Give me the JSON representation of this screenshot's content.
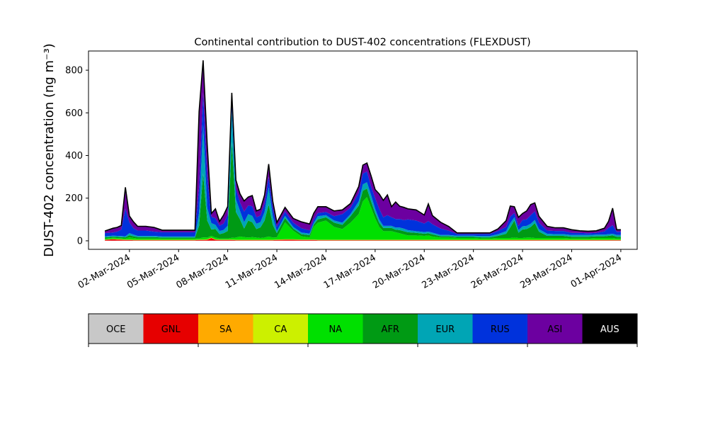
{
  "chart_data": {
    "type": "area",
    "stacked": true,
    "title": "Continental contribution to DUST-402 concentrations (FLEXDUST)",
    "ylabel": "DUST-402 concentration (ng m⁻³)",
    "xlabel": "",
    "ylim": [
      -40,
      890
    ],
    "xlim": [
      "2024-02-28T12:00",
      "2024-04-02T00:00"
    ],
    "yticks": [
      0,
      200,
      400,
      600,
      800
    ],
    "xticks": [
      "2024-03-02",
      "2024-03-05",
      "2024-03-08",
      "2024-03-11",
      "2024-03-14",
      "2024-03-17",
      "2024-03-20",
      "2024-03-23",
      "2024-03-26",
      "2024-03-29",
      "2024-04-01"
    ],
    "xtick_labels": [
      "02-Mar-2024",
      "05-Mar-2024",
      "08-Mar-2024",
      "11-Mar-2024",
      "14-Mar-2024",
      "17-Mar-2024",
      "20-Mar-2024",
      "23-Mar-2024",
      "26-Mar-2024",
      "29-Mar-2024",
      "01-Apr-2024"
    ],
    "total_line_color": "#000000",
    "grid": false,
    "legend": {
      "placement": "colorbar below plot",
      "entries": [
        {
          "name": "OCE",
          "color": "#c8c8c8",
          "text_color": "#000000"
        },
        {
          "name": "GNL",
          "color": "#e60000",
          "text_color": "#000000"
        },
        {
          "name": "SA",
          "color": "#ffaa00",
          "text_color": "#000000"
        },
        {
          "name": "CA",
          "color": "#ccf000",
          "text_color": "#000000"
        },
        {
          "name": "NA",
          "color": "#00e000",
          "text_color": "#000000"
        },
        {
          "name": "AFR",
          "color": "#009a14",
          "text_color": "#000000"
        },
        {
          "name": "EUR",
          "color": "#00a5b5",
          "text_color": "#000000"
        },
        {
          "name": "RUS",
          "color": "#0032dc",
          "text_color": "#000000"
        },
        {
          "name": "ASI",
          "color": "#6c00a0",
          "text_color": "#000000"
        },
        {
          "name": "AUS",
          "color": "#000000",
          "text_color": "#ffffff"
        }
      ]
    },
    "x": [
      "2024-02-29T12:00",
      "2024-03-01T00:00",
      "2024-03-01T06:00",
      "2024-03-01T12:00",
      "2024-03-01T18:00",
      "2024-03-02T00:00",
      "2024-03-02T06:00",
      "2024-03-02T12:00",
      "2024-03-03T00:00",
      "2024-03-03T12:00",
      "2024-03-04T00:00",
      "2024-03-04T12:00",
      "2024-03-05T00:00",
      "2024-03-05T12:00",
      "2024-03-06T00:00",
      "2024-03-06T06:00",
      "2024-03-06T12:00",
      "2024-03-06T18:00",
      "2024-03-07T00:00",
      "2024-03-07T06:00",
      "2024-03-07T12:00",
      "2024-03-07T18:00",
      "2024-03-08T00:00",
      "2024-03-08T06:00",
      "2024-03-08T12:00",
      "2024-03-08T18:00",
      "2024-03-09T00:00",
      "2024-03-09T06:00",
      "2024-03-09T12:00",
      "2024-03-09T18:00",
      "2024-03-10T00:00",
      "2024-03-10T06:00",
      "2024-03-10T12:00",
      "2024-03-10T18:00",
      "2024-03-11T00:00",
      "2024-03-11T12:00",
      "2024-03-12T00:00",
      "2024-03-12T12:00",
      "2024-03-13T00:00",
      "2024-03-13T06:00",
      "2024-03-13T12:00",
      "2024-03-14T00:00",
      "2024-03-14T12:00",
      "2024-03-15T00:00",
      "2024-03-15T12:00",
      "2024-03-16T00:00",
      "2024-03-16T06:00",
      "2024-03-16T12:00",
      "2024-03-16T18:00",
      "2024-03-17T00:00",
      "2024-03-17T06:00",
      "2024-03-17T12:00",
      "2024-03-17T18:00",
      "2024-03-18T00:00",
      "2024-03-18T06:00",
      "2024-03-18T12:00",
      "2024-03-18T18:00",
      "2024-03-19T00:00",
      "2024-03-19T12:00",
      "2024-03-20T00:00",
      "2024-03-20T06:00",
      "2024-03-20T12:00",
      "2024-03-21T00:00",
      "2024-03-21T12:00",
      "2024-03-22T00:00",
      "2024-03-22T12:00",
      "2024-03-23T00:00",
      "2024-03-23T12:00",
      "2024-03-24T00:00",
      "2024-03-24T12:00",
      "2024-03-25T00:00",
      "2024-03-25T06:00",
      "2024-03-25T12:00",
      "2024-03-25T18:00",
      "2024-03-26T00:00",
      "2024-03-26T06:00",
      "2024-03-26T12:00",
      "2024-03-26T18:00",
      "2024-03-27T00:00",
      "2024-03-27T12:00",
      "2024-03-28T00:00",
      "2024-03-28T12:00",
      "2024-03-29T00:00",
      "2024-03-29T12:00",
      "2024-03-30T00:00",
      "2024-03-30T12:00",
      "2024-03-31T00:00",
      "2024-03-31T06:00",
      "2024-03-31T12:00",
      "2024-03-31T18:00",
      "2024-04-01T00:00"
    ],
    "series": [
      {
        "name": "OCE",
        "values": [
          1,
          1,
          1,
          1,
          1,
          1,
          1,
          1,
          1,
          1,
          1,
          1,
          1,
          1,
          1,
          1,
          1,
          1,
          1,
          1,
          1,
          1,
          1,
          1,
          1,
          1,
          1,
          1,
          1,
          1,
          1,
          1,
          1,
          1,
          1,
          1,
          1,
          1,
          1,
          1,
          1,
          1,
          1,
          1,
          1,
          1,
          1,
          1,
          1,
          1,
          1,
          1,
          1,
          1,
          1,
          1,
          1,
          1,
          1,
          1,
          1,
          1,
          1,
          1,
          1,
          1,
          1,
          1,
          1,
          1,
          1,
          1,
          1,
          1,
          1,
          1,
          1,
          1,
          1,
          1,
          1,
          1,
          1,
          1,
          1,
          1,
          1,
          1,
          1,
          1,
          1
        ]
      },
      {
        "name": "GNL",
        "values": [
          3,
          6,
          5,
          4,
          3,
          3,
          2,
          2,
          2,
          2,
          2,
          2,
          2,
          2,
          2,
          3,
          3,
          4,
          12,
          4,
          3,
          3,
          3,
          3,
          2,
          2,
          2,
          2,
          2,
          2,
          2,
          2,
          2,
          2,
          3,
          4,
          4,
          3,
          3,
          3,
          2,
          2,
          2,
          2,
          2,
          2,
          2,
          2,
          2,
          2,
          2,
          2,
          2,
          2,
          2,
          2,
          2,
          2,
          2,
          2,
          2,
          2,
          2,
          2,
          2,
          2,
          2,
          2,
          2,
          2,
          2,
          2,
          2,
          2,
          2,
          2,
          2,
          2,
          2,
          2,
          2,
          2,
          2,
          2,
          2,
          2,
          2,
          2,
          2,
          2,
          2
        ]
      },
      {
        "name": "SA",
        "values": [
          1,
          1,
          1,
          1,
          1,
          1,
          1,
          1,
          1,
          1,
          1,
          1,
          1,
          1,
          1,
          1,
          1,
          1,
          1,
          1,
          1,
          1,
          1,
          1,
          1,
          1,
          1,
          1,
          1,
          1,
          1,
          1,
          1,
          1,
          1,
          1,
          1,
          1,
          1,
          1,
          1,
          1,
          1,
          1,
          1,
          1,
          1,
          1,
          1,
          1,
          1,
          1,
          1,
          1,
          1,
          1,
          1,
          1,
          1,
          1,
          1,
          1,
          1,
          1,
          1,
          1,
          1,
          1,
          1,
          1,
          1,
          1,
          1,
          1,
          1,
          1,
          1,
          1,
          1,
          1,
          1,
          1,
          1,
          1,
          1,
          1,
          1,
          1,
          1,
          1,
          1
        ]
      },
      {
        "name": "CA",
        "values": [
          1,
          1,
          1,
          1,
          1,
          1,
          1,
          1,
          1,
          1,
          1,
          1,
          1,
          1,
          1,
          1,
          1,
          1,
          1,
          1,
          1,
          1,
          1,
          1,
          1,
          1,
          1,
          1,
          1,
          1,
          1,
          1,
          1,
          1,
          1,
          1,
          1,
          1,
          1,
          1,
          1,
          1,
          1,
          1,
          1,
          1,
          1,
          1,
          1,
          1,
          1,
          1,
          1,
          1,
          1,
          1,
          1,
          1,
          1,
          1,
          1,
          1,
          1,
          1,
          1,
          1,
          1,
          1,
          1,
          1,
          1,
          1,
          1,
          1,
          1,
          1,
          1,
          1,
          1,
          1,
          1,
          1,
          1,
          1,
          1,
          1,
          1,
          1,
          1,
          1,
          1
        ]
      },
      {
        "name": "NA",
        "values": [
          5,
          5,
          5,
          5,
          5,
          10,
          8,
          6,
          6,
          6,
          5,
          5,
          5,
          5,
          5,
          5,
          10,
          8,
          8,
          8,
          5,
          5,
          5,
          8,
          10,
          15,
          12,
          10,
          12,
          10,
          8,
          10,
          15,
          10,
          10,
          80,
          40,
          15,
          10,
          60,
          80,
          90,
          60,
          50,
          80,
          120,
          180,
          200,
          150,
          100,
          60,
          40,
          40,
          40,
          35,
          30,
          25,
          20,
          20,
          18,
          20,
          15,
          10,
          10,
          8,
          8,
          8,
          6,
          6,
          8,
          8,
          8,
          10,
          8,
          8,
          10,
          10,
          8,
          8,
          8,
          8,
          8,
          6,
          6,
          6,
          8,
          8,
          8,
          8,
          6,
          6
        ]
      },
      {
        "name": "AFR",
        "values": [
          5,
          5,
          5,
          5,
          5,
          10,
          8,
          6,
          6,
          6,
          5,
          5,
          5,
          5,
          5,
          60,
          300,
          80,
          30,
          40,
          20,
          25,
          35,
          450,
          120,
          80,
          40,
          80,
          70,
          40,
          50,
          80,
          150,
          60,
          20,
          20,
          10,
          10,
          10,
          10,
          15,
          15,
          20,
          20,
          30,
          40,
          50,
          40,
          30,
          25,
          20,
          15,
          15,
          15,
          12,
          15,
          15,
          15,
          12,
          10,
          10,
          10,
          6,
          6,
          5,
          5,
          5,
          5,
          5,
          10,
          20,
          50,
          80,
          25,
          40,
          40,
          50,
          70,
          30,
          10,
          10,
          10,
          8,
          8,
          8,
          8,
          8,
          10,
          12,
          8,
          8
        ]
      },
      {
        "name": "EUR",
        "values": [
          5,
          5,
          5,
          5,
          5,
          10,
          8,
          6,
          6,
          6,
          5,
          5,
          5,
          5,
          5,
          60,
          230,
          60,
          30,
          20,
          15,
          15,
          25,
          150,
          60,
          40,
          30,
          30,
          30,
          25,
          25,
          40,
          80,
          40,
          10,
          10,
          8,
          8,
          8,
          8,
          15,
          10,
          10,
          10,
          10,
          20,
          30,
          30,
          30,
          20,
          15,
          10,
          10,
          10,
          10,
          12,
          12,
          10,
          8,
          8,
          8,
          8,
          6,
          6,
          6,
          6,
          6,
          6,
          6,
          8,
          12,
          20,
          15,
          12,
          15,
          15,
          15,
          15,
          12,
          10,
          8,
          8,
          8,
          8,
          8,
          8,
          8,
          8,
          8,
          8,
          8
        ]
      },
      {
        "name": "RUS",
        "values": [
          15,
          15,
          20,
          30,
          130,
          50,
          30,
          25,
          25,
          20,
          20,
          20,
          20,
          20,
          20,
          120,
          150,
          150,
          30,
          30,
          25,
          30,
          50,
          50,
          50,
          40,
          50,
          40,
          45,
          30,
          30,
          40,
          50,
          40,
          20,
          20,
          20,
          20,
          15,
          15,
          15,
          15,
          20,
          40,
          30,
          40,
          50,
          50,
          40,
          50,
          50,
          40,
          50,
          40,
          40,
          40,
          40,
          50,
          50,
          40,
          50,
          40,
          30,
          20,
          8,
          8,
          8,
          10,
          10,
          15,
          20,
          30,
          20,
          20,
          30,
          30,
          40,
          40,
          30,
          15,
          15,
          15,
          10,
          10,
          8,
          8,
          15,
          30,
          40,
          15,
          15
        ]
      },
      {
        "name": "ASI",
        "values": [
          10,
          20,
          20,
          20,
          100,
          30,
          30,
          20,
          20,
          20,
          10,
          10,
          10,
          10,
          10,
          355,
          150,
          145,
          15,
          45,
          20,
          40,
          40,
          30,
          40,
          40,
          50,
          40,
          50,
          30,
          30,
          40,
          60,
          30,
          20,
          20,
          20,
          30,
          30,
          30,
          30,
          25,
          25,
          20,
          20,
          30,
          40,
          40,
          50,
          40,
          70,
          80,
          95,
          50,
          80,
          60,
          60,
          50,
          50,
          40,
          80,
          40,
          30,
          20,
          5,
          5,
          5,
          5,
          5,
          10,
          30,
          50,
          30,
          40,
          30,
          40,
          50,
          40,
          30,
          20,
          15,
          15,
          15,
          10,
          10,
          10,
          15,
          30,
          80,
          10,
          10
        ]
      },
      {
        "name": "AUS",
        "values": [
          0,
          0,
          0,
          0,
          0,
          0,
          0,
          0,
          0,
          0,
          0,
          0,
          0,
          0,
          0,
          0,
          0,
          0,
          0,
          0,
          0,
          0,
          0,
          0,
          0,
          0,
          0,
          0,
          0,
          0,
          0,
          0,
          0,
          0,
          0,
          0,
          0,
          0,
          0,
          0,
          0,
          0,
          0,
          0,
          0,
          0,
          0,
          0,
          0,
          0,
          0,
          0,
          0,
          0,
          0,
          0,
          0,
          0,
          0,
          0,
          0,
          0,
          0,
          0,
          0,
          0,
          0,
          0,
          0,
          0,
          0,
          0,
          0,
          0,
          0,
          0,
          0,
          0,
          0,
          0,
          0,
          0,
          0,
          0,
          0,
          0,
          0,
          0,
          0,
          0,
          0
        ]
      }
    ]
  }
}
